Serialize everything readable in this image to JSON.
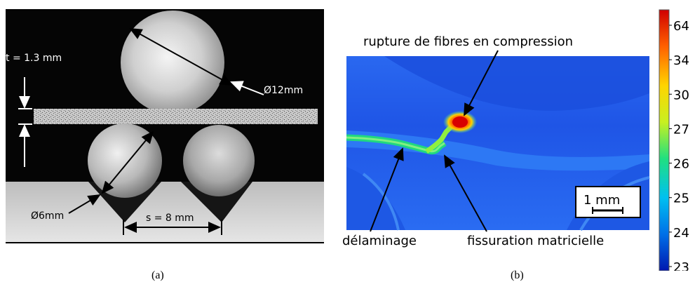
{
  "figure_a": {
    "caption": "(a)",
    "thickness": "t = 1.3 mm",
    "top_diameter": "Ø12mm",
    "bottom_diameter": "Ø6mm",
    "span": "s = 8 mm"
  },
  "figure_b": {
    "caption": "(b)",
    "annotations": {
      "fiber_rupture": "rupture de fibres en compression",
      "delamination": "délaminage",
      "matrix_cracking": "fissuration matricielle"
    },
    "scale_bar": "1 mm",
    "colorbar_ticks": [
      "64",
      "34",
      "30",
      "27",
      "26",
      "25",
      "24",
      "23"
    ],
    "colorbar_colors": [
      "#0018b0",
      "#0070e8",
      "#00c0f0",
      "#20e080",
      "#c8f020",
      "#ffd400",
      "#ff6000",
      "#d00000"
    ]
  }
}
